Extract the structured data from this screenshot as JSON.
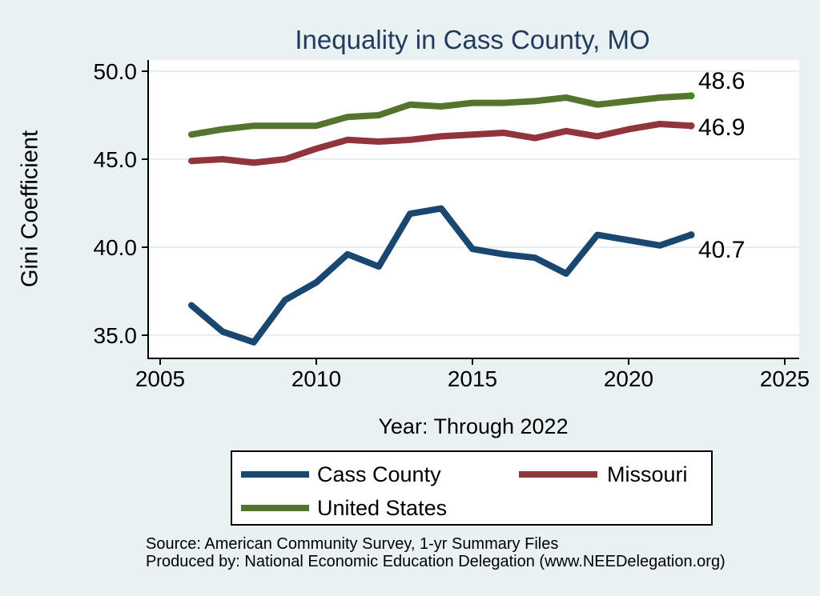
{
  "chart_data": {
    "type": "line",
    "title": "Inequality in Cass County, MO",
    "xlabel": "Year: Through 2022",
    "ylabel": "Gini Coefficient",
    "source_note": "Source: American Community Survey, 1-yr Summary Files",
    "producer_note": "Produced by: National Economic Education Delegation (www.NEEDelegation.org)",
    "x": [
      2006,
      2007,
      2008,
      2009,
      2010,
      2011,
      2012,
      2013,
      2014,
      2015,
      2016,
      2017,
      2018,
      2019,
      2020,
      2021,
      2022
    ],
    "series": [
      {
        "name": "Cass County",
        "color": "#1a476f",
        "values": [
          36.7,
          35.2,
          34.6,
          37.0,
          38.0,
          39.6,
          38.9,
          41.9,
          42.2,
          39.9,
          39.6,
          39.4,
          38.5,
          40.7,
          40.4,
          40.1,
          40.7
        ],
        "end_label": "40.7"
      },
      {
        "name": "Missouri",
        "color": "#90353b",
        "values": [
          44.9,
          45.0,
          44.8,
          45.0,
          45.6,
          46.1,
          46.0,
          46.1,
          46.3,
          46.4,
          46.5,
          46.2,
          46.6,
          46.3,
          46.7,
          47.0,
          46.9
        ],
        "end_label": "46.9"
      },
      {
        "name": "United States",
        "color": "#55752f",
        "marker_color": "#3e8a1b",
        "values": [
          46.4,
          46.7,
          46.9,
          46.9,
          46.9,
          47.4,
          47.5,
          48.1,
          48.0,
          48.2,
          48.2,
          48.3,
          48.5,
          48.1,
          48.3,
          48.5,
          48.6
        ],
        "end_label": "48.6"
      }
    ],
    "y_ticks": [
      35,
      40,
      45,
      50
    ],
    "y_tick_labels": [
      "35.0",
      "40.0",
      "45.0",
      "50.0"
    ],
    "x_ticks": [
      2005,
      2010,
      2015,
      2020,
      2025
    ],
    "x_tick_labels": [
      "2005",
      "2010",
      "2015",
      "2020",
      "2025"
    ],
    "ylim": [
      33.6,
      50.6
    ],
    "xlim": [
      2004.6,
      2025.5
    ],
    "grid": true,
    "legend_position": "below",
    "colors": {
      "background": "#eaf1f3",
      "plot_bg": "#ffffff",
      "grid": "#e4eef1",
      "axis": "#000000",
      "title": "#233a5f"
    }
  }
}
